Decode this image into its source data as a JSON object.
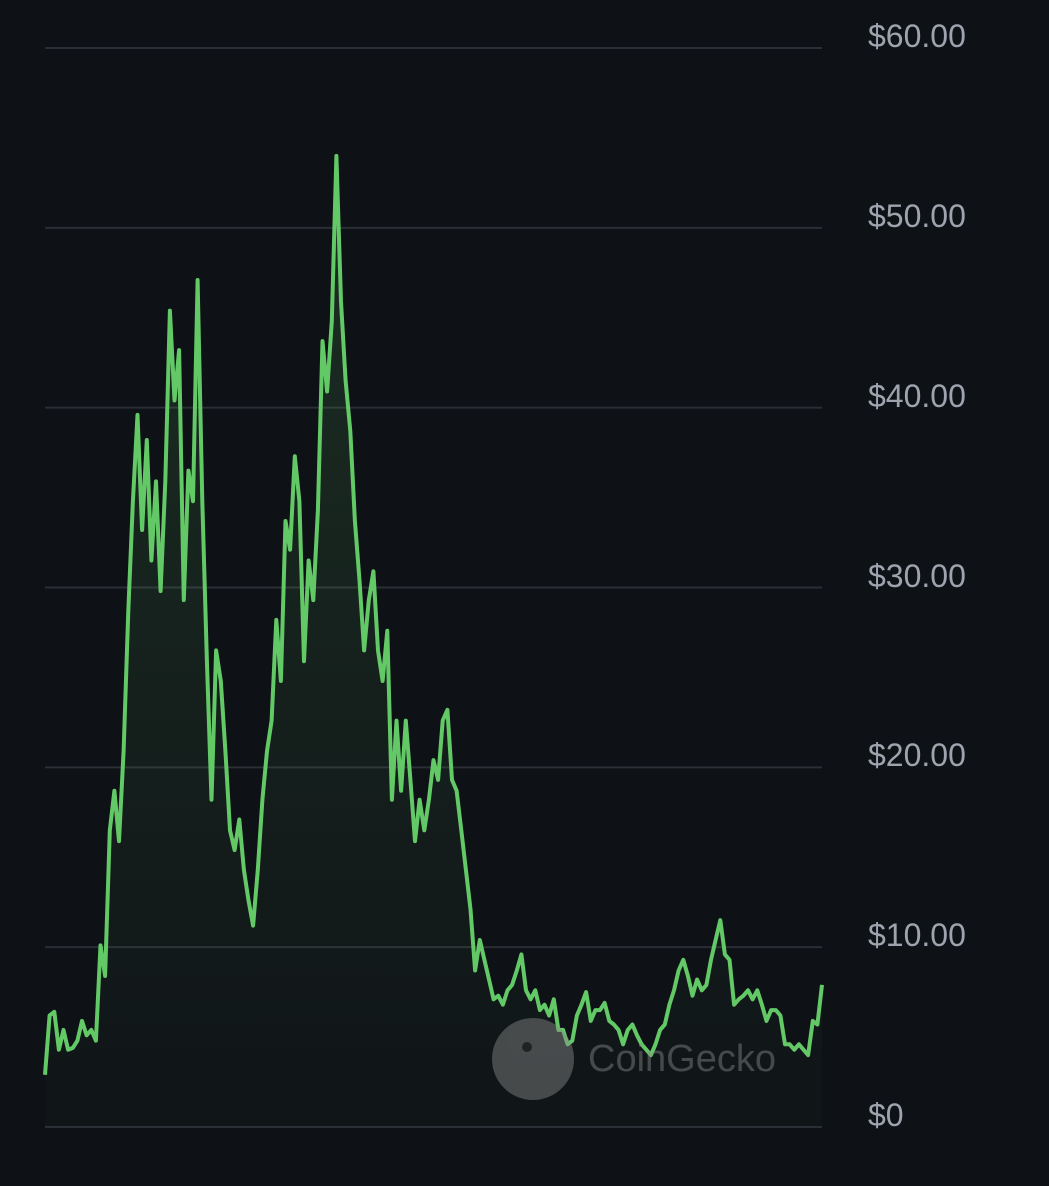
{
  "chart_data": {
    "type": "area",
    "title": "",
    "xlabel": "",
    "ylabel": "",
    "ylim": [
      0,
      60
    ],
    "y_ticks": [
      {
        "value": 60,
        "label": "$60.00"
      },
      {
        "value": 50,
        "label": "$50.00"
      },
      {
        "value": 40,
        "label": "$40.00"
      },
      {
        "value": 30,
        "label": "$30.00"
      },
      {
        "value": 20,
        "label": "$20.00"
      },
      {
        "value": 10,
        "label": "$10.00"
      },
      {
        "value": 0,
        "label": "$0"
      }
    ],
    "grid": true,
    "y_axis_position": "right",
    "line_color": "#63c966",
    "grid_color": "#2a2e35",
    "values": [
      2.9,
      6.2,
      6.4,
      4.3,
      5.4,
      4.3,
      4.4,
      4.8,
      5.9,
      5.1,
      5.4,
      4.8,
      10.1,
      8.4,
      16.5,
      18.7,
      15.9,
      20.9,
      28.7,
      34.8,
      39.6,
      33.2,
      38.2,
      31.5,
      35.9,
      29.8,
      35.9,
      45.4,
      40.4,
      43.2,
      29.3,
      36.5,
      34.8,
      47.1,
      34.8,
      25.9,
      18.2,
      26.5,
      24.8,
      20.9,
      16.5,
      15.4,
      17.1,
      14.3,
      12.6,
      11.2,
      14.3,
      18.2,
      20.9,
      22.6,
      28.2,
      24.8,
      33.7,
      32.1,
      37.3,
      34.8,
      25.9,
      31.5,
      29.3,
      34.3,
      43.7,
      40.9,
      44.8,
      54.0,
      45.9,
      41.5,
      38.7,
      33.7,
      30.4,
      26.5,
      29.3,
      30.9,
      26.5,
      24.8,
      27.6,
      18.2,
      22.6,
      18.7,
      22.6,
      19.3,
      15.9,
      18.2,
      16.5,
      18.2,
      20.4,
      19.3,
      22.6,
      23.2,
      19.3,
      18.7,
      16.5,
      14.3,
      12.1,
      8.7,
      10.4,
      9.3,
      8.2,
      7.1,
      7.3,
      6.8,
      7.6,
      7.9,
      8.7,
      9.6,
      7.6,
      7.1,
      7.6,
      6.5,
      6.8,
      6.2,
      7.1,
      5.4,
      5.4,
      4.6,
      4.8,
      6.2,
      6.8,
      7.5,
      5.9,
      6.5,
      6.5,
      6.9,
      5.9,
      5.7,
      5.4,
      4.6,
      5.4,
      5.7,
      5.1,
      4.6,
      4.3,
      4.0,
      4.6,
      5.4,
      5.7,
      6.8,
      7.6,
      8.7,
      9.3,
      8.4,
      7.3,
      8.2,
      7.6,
      7.9,
      9.3,
      10.4,
      11.5,
      9.6,
      9.3,
      6.8,
      7.1,
      7.3,
      7.6,
      7.1,
      7.6,
      6.8,
      5.9,
      6.5,
      6.5,
      6.2,
      4.6,
      4.6,
      4.3,
      4.6,
      4.3,
      4.0,
      5.9,
      5.7,
      7.9
    ]
  },
  "watermark": {
    "text": "CoinGecko"
  }
}
